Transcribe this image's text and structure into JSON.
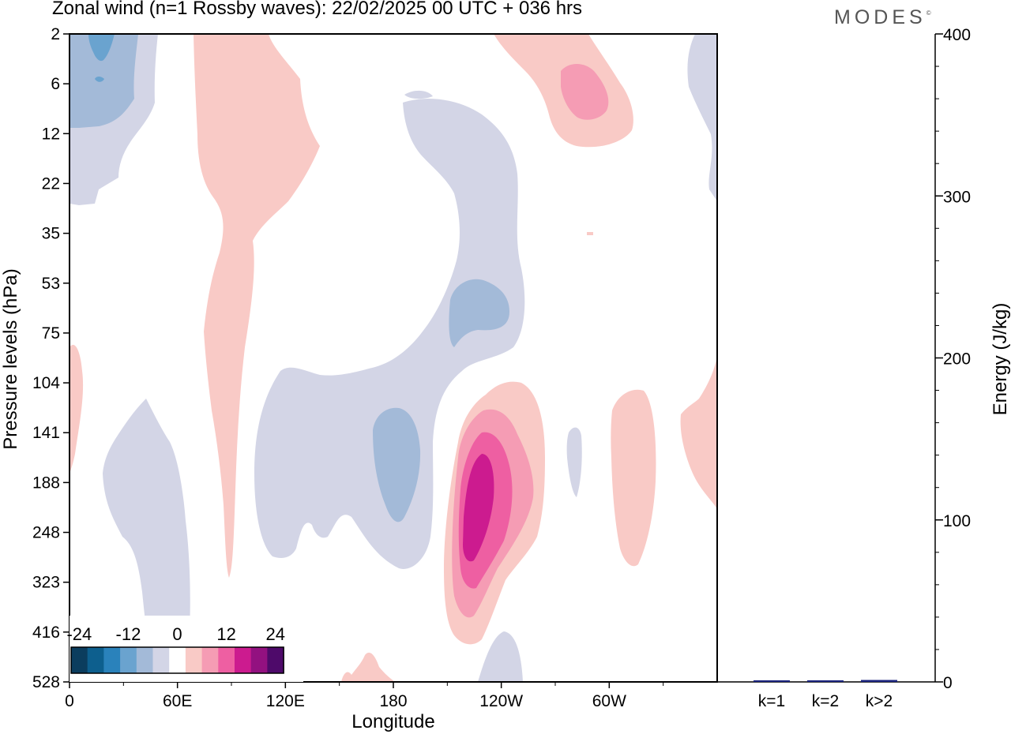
{
  "header": {
    "title": "Zonal wind (n=1 Rossby waves):  22/02/2025  00 UTC  + 036 hrs",
    "brand": "MODES",
    "brand_mark": "©"
  },
  "colors": {
    "shading": {
      "-24": "#0b3d5e",
      "-20": "#0d5f8e",
      "-16": "#2a82bb",
      "-12": "#6aa3cf",
      "-8": "#a3bad8",
      "-4": "#d3d5e6",
      "0": "#ffffff",
      "4": "#f9cac6",
      "8": "#f59cb4",
      "12": "#ee5fa2",
      "16": "#cc1b8f",
      "20": "#931180",
      "24": "#4e0a6a"
    },
    "energy_bar": "#1a237e"
  },
  "chart_data": [
    {
      "type": "heatmap",
      "title": "Zonal wind (n=1 Rossby waves):  22/02/2025  00 UTC  + 036 hrs",
      "xlabel": "Longitude",
      "ylabel": "Pressure levels (hPa)",
      "x_ticks": [
        "0",
        "60E",
        "120E",
        "180",
        "120W",
        "60W"
      ],
      "y_ticks": [
        "2",
        "6",
        "12",
        "22",
        "35",
        "53",
        "75",
        "104",
        "141",
        "188",
        "248",
        "323",
        "416",
        "528"
      ],
      "colorbar": {
        "tick_labels": [
          "-24",
          "-12",
          "0",
          "12",
          "24"
        ],
        "levels": [
          -24,
          -20,
          -16,
          -12,
          -8,
          -4,
          0,
          4,
          8,
          12,
          16,
          20,
          24
        ]
      },
      "features": [
        {
          "region": "upper levels near 0-40E",
          "sign": "negative",
          "min_value": -16
        },
        {
          "region": "60E-90E, 2-330 hPa",
          "sign": "positive",
          "max_value": 4
        },
        {
          "region": "170E-120W, 10-330 hPa",
          "sign": "negative",
          "min_value": -8
        },
        {
          "region": "around 110W, 104-528 hPa",
          "sign": "positive",
          "max_value": 16
        },
        {
          "region": "around 90W, 2-12 hPa",
          "sign": "positive",
          "max_value": 8
        },
        {
          "region": "around 50W, 104-323 hPa",
          "sign": "positive",
          "max_value": 4
        }
      ]
    },
    {
      "type": "bar",
      "categories": [
        "k=1",
        "k=2",
        "k>2"
      ],
      "values": [
        0.8,
        0.6,
        1.2
      ],
      "ylabel": "Energy (J/kg)",
      "ylim": [
        0,
        400
      ],
      "y_ticks": [
        "0",
        "100",
        "200",
        "300",
        "400"
      ]
    }
  ]
}
